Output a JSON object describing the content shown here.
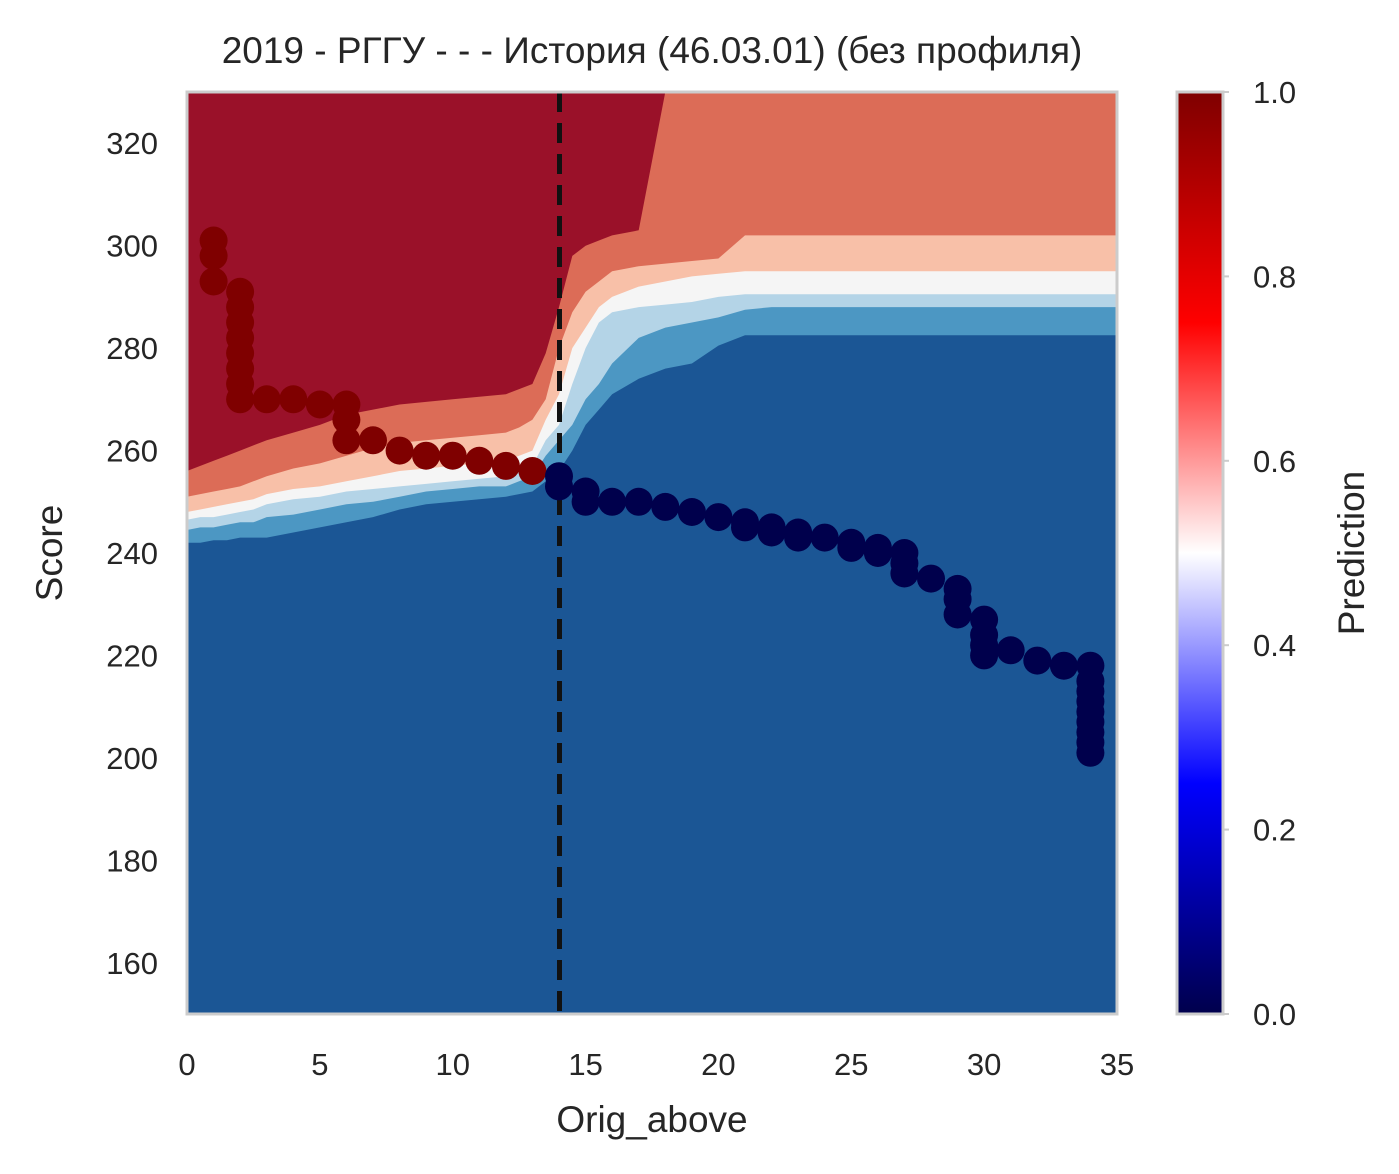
{
  "chart_data": {
    "type": "scatter",
    "title": "2019 - РГГУ - - - История (46.03.01) (без профиля)",
    "xlabel": "Orig_above",
    "ylabel": "Score",
    "xlim": [
      0,
      35
    ],
    "ylim": [
      150,
      330
    ],
    "x_ticks": [
      0,
      5,
      10,
      15,
      20,
      25,
      30,
      35
    ],
    "y_ticks": [
      160,
      180,
      200,
      220,
      240,
      260,
      280,
      300,
      320
    ],
    "grid": false,
    "cutoff_line": {
      "x": 14,
      "style": "dashed",
      "color": "#111111"
    },
    "colorbar": {
      "label": "Prediction",
      "range": [
        0.0,
        1.0
      ],
      "ticks": [
        "0.0",
        "0.2",
        "0.4",
        "0.6",
        "0.8",
        "1.0"
      ],
      "colors": [
        "#00004c",
        "#0000ff",
        "#ffffff",
        "#ff0000",
        "#7f0000"
      ]
    },
    "contour_levels": [
      {
        "range": [
          0.0,
          0.125
        ],
        "color": "#1b5695"
      },
      {
        "range": [
          0.125,
          0.25
        ],
        "color": "#4c97c3"
      },
      {
        "range": [
          0.25,
          0.375
        ],
        "color": "#b4d4e7"
      },
      {
        "range": [
          0.375,
          0.5
        ],
        "color": "#f5f5f5"
      },
      {
        "range": [
          0.5,
          0.625
        ],
        "color": "#f8c0a8"
      },
      {
        "range": [
          0.625,
          0.75
        ],
        "color": "#dc6c57"
      },
      {
        "range": [
          0.75,
          1.0
        ],
        "color": "#9a1129"
      }
    ],
    "series": [
      {
        "prediction": 1,
        "color": "#7f0000",
        "points": [
          [
            1,
            301
          ],
          [
            1,
            298
          ],
          [
            1,
            293
          ],
          [
            2,
            291
          ],
          [
            2,
            288
          ],
          [
            2,
            285
          ],
          [
            2,
            282
          ],
          [
            2,
            279
          ],
          [
            2,
            276
          ],
          [
            2,
            273
          ],
          [
            2,
            270
          ],
          [
            3,
            270
          ],
          [
            4,
            270
          ],
          [
            5,
            269
          ],
          [
            6,
            269
          ],
          [
            6,
            266
          ],
          [
            6,
            262
          ],
          [
            7,
            262
          ],
          [
            8,
            260
          ],
          [
            9,
            259
          ],
          [
            10,
            259
          ],
          [
            11,
            258
          ],
          [
            12,
            257
          ],
          [
            13,
            256
          ]
        ]
      },
      {
        "prediction": 0,
        "color": "#00004c",
        "points": [
          [
            14,
            255
          ],
          [
            14,
            253
          ],
          [
            15,
            252
          ],
          [
            15,
            250
          ],
          [
            16,
            250
          ],
          [
            17,
            250
          ],
          [
            18,
            249
          ],
          [
            19,
            248
          ],
          [
            20,
            247
          ],
          [
            21,
            246
          ],
          [
            21,
            245
          ],
          [
            22,
            245
          ],
          [
            22,
            244
          ],
          [
            23,
            244
          ],
          [
            23,
            243
          ],
          [
            24,
            243
          ],
          [
            25,
            242
          ],
          [
            25,
            241
          ],
          [
            26,
            241
          ],
          [
            26,
            240
          ],
          [
            27,
            240
          ],
          [
            27,
            238
          ],
          [
            27,
            236
          ],
          [
            28,
            235
          ],
          [
            29,
            233
          ],
          [
            29,
            231
          ],
          [
            29,
            228
          ],
          [
            30,
            227
          ],
          [
            30,
            224
          ],
          [
            30,
            222
          ],
          [
            30,
            220
          ],
          [
            31,
            221
          ],
          [
            32,
            219
          ],
          [
            33,
            218
          ],
          [
            34,
            218
          ],
          [
            34,
            215
          ],
          [
            34,
            213
          ],
          [
            34,
            211
          ],
          [
            34,
            209
          ],
          [
            34,
            207
          ],
          [
            34,
            205
          ],
          [
            34,
            203
          ],
          [
            34,
            201
          ]
        ]
      }
    ]
  }
}
